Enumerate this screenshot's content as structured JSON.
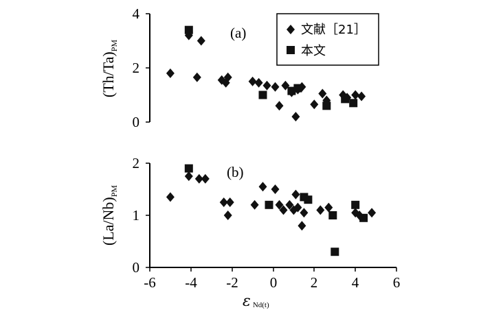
{
  "chart_data": [
    {
      "type": "scatter",
      "panel_label": "(a)",
      "ylabel": "(Th/Ta)",
      "ylabel_sub": "PM",
      "xlim": [
        -6,
        6
      ],
      "ylim": [
        0,
        4
      ],
      "yticks": [
        "0",
        "2",
        "4"
      ],
      "legend": {
        "placement": "top-right",
        "entries": [
          {
            "marker": "diamond",
            "label": "文献［21］"
          },
          {
            "marker": "square",
            "label": "本文"
          }
        ]
      },
      "series": [
        {
          "name": "文献［21］",
          "marker": "diamond",
          "points": [
            [
              -5.0,
              1.8
            ],
            [
              -4.1,
              3.2
            ],
            [
              -3.7,
              1.65
            ],
            [
              -3.5,
              3.0
            ],
            [
              -2.5,
              1.55
            ],
            [
              -2.3,
              1.45
            ],
            [
              -2.2,
              1.65
            ],
            [
              -1.0,
              1.5
            ],
            [
              -0.7,
              1.45
            ],
            [
              -0.3,
              1.35
            ],
            [
              0.1,
              1.3
            ],
            [
              0.3,
              0.6
            ],
            [
              0.6,
              1.35
            ],
            [
              0.9,
              1.1
            ],
            [
              1.1,
              0.2
            ],
            [
              1.2,
              1.2
            ],
            [
              1.4,
              1.3
            ],
            [
              2.0,
              0.65
            ],
            [
              2.4,
              1.05
            ],
            [
              2.6,
              0.8
            ],
            [
              3.4,
              1.0
            ],
            [
              3.6,
              0.9
            ],
            [
              4.0,
              1.0
            ],
            [
              4.3,
              0.95
            ]
          ]
        },
        {
          "name": "本文",
          "marker": "square",
          "points": [
            [
              -4.1,
              3.4
            ],
            [
              -0.5,
              1.0
            ],
            [
              0.9,
              1.15
            ],
            [
              1.2,
              1.25
            ],
            [
              2.6,
              0.6
            ],
            [
              3.5,
              0.85
            ],
            [
              3.9,
              0.7
            ]
          ]
        }
      ]
    },
    {
      "type": "scatter",
      "panel_label": "(b)",
      "ylabel": "(La/Nb)",
      "ylabel_sub": "PM",
      "xlabel": "ε",
      "xlabel_sub": "Nd(t)",
      "xlim": [
        -6,
        6
      ],
      "ylim": [
        0,
        2
      ],
      "xticks": [
        "-6",
        "-4",
        "-2",
        "0",
        "2",
        "4",
        "6"
      ],
      "yticks": [
        "0",
        "1",
        "2"
      ],
      "series": [
        {
          "name": "文献［21］",
          "marker": "diamond",
          "points": [
            [
              -5.0,
              1.35
            ],
            [
              -4.1,
              1.75
            ],
            [
              -3.6,
              1.7
            ],
            [
              -3.3,
              1.7
            ],
            [
              -2.4,
              1.25
            ],
            [
              -2.2,
              1.0
            ],
            [
              -2.1,
              1.25
            ],
            [
              -0.9,
              1.2
            ],
            [
              -0.5,
              1.55
            ],
            [
              0.1,
              1.5
            ],
            [
              0.3,
              1.2
            ],
            [
              0.5,
              1.1
            ],
            [
              0.8,
              1.2
            ],
            [
              1.0,
              1.1
            ],
            [
              1.1,
              1.4
            ],
            [
              1.2,
              1.15
            ],
            [
              1.4,
              0.8
            ],
            [
              1.5,
              1.05
            ],
            [
              2.3,
              1.1
            ],
            [
              2.7,
              1.15
            ],
            [
              4.0,
              1.05
            ],
            [
              4.2,
              1.0
            ],
            [
              4.8,
              1.05
            ]
          ]
        },
        {
          "name": "本文",
          "marker": "square",
          "points": [
            [
              -4.1,
              1.9
            ],
            [
              -0.2,
              1.2
            ],
            [
              1.5,
              1.35
            ],
            [
              1.7,
              1.3
            ],
            [
              2.9,
              1.0
            ],
            [
              3.0,
              0.3
            ],
            [
              4.0,
              1.2
            ],
            [
              4.4,
              0.95
            ]
          ]
        }
      ]
    }
  ]
}
